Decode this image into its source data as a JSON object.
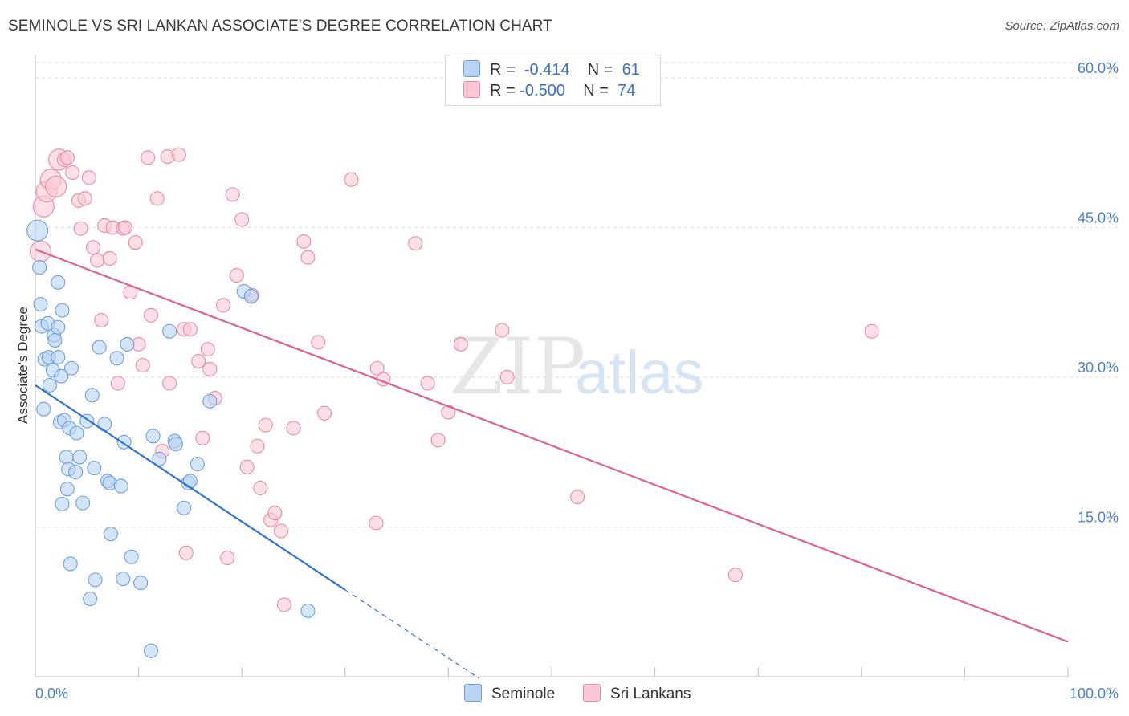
{
  "title": "SEMINOLE VS SRI LANKAN ASSOCIATE'S DEGREE CORRELATION CHART",
  "source": "Source: ZipAtlas.com",
  "watermark": {
    "zip": "ZIP",
    "atlas": "atlas"
  },
  "legend": {
    "r_label": "R =",
    "n_label": "N =",
    "series": [
      {
        "name": "Seminole",
        "r": "-0.414",
        "n": "61",
        "fill": "#b9d3f4",
        "stroke": "#6e9fe0"
      },
      {
        "name": "Sri Lankans",
        "r": "-0.500",
        "n": "74",
        "fill": "#fbc9d6",
        "stroke": "#e88aa6"
      }
    ]
  },
  "colors": {
    "blue_line": "#2f72d6",
    "pink_line": "#e0608e",
    "tick_text": "#4a7fd0",
    "grid": "#d9d9d9"
  },
  "chart_data": {
    "type": "scatter",
    "title": "SEMINOLE VS SRI LANKAN ASSOCIATE'S DEGREE CORRELATION CHART",
    "xlabel": "",
    "ylabel": "Associate's Degree",
    "xlim": [
      0,
      100
    ],
    "ylim": [
      0,
      62
    ],
    "x_tick_labels": [
      "0.0%",
      "100.0%"
    ],
    "y_ticks": [
      15,
      30,
      45,
      60
    ],
    "y_tick_labels": [
      "15.0%",
      "30.0%",
      "45.0%",
      "60.0%"
    ],
    "grid": true,
    "series": [
      {
        "name": "Seminole",
        "trend": {
          "x0": 0,
          "y0": 29.2,
          "x1": 30,
          "y1": 8.7,
          "dash_to_x": 43
        },
        "points": [
          [
            0.2,
            44.7
          ],
          [
            0.4,
            41
          ],
          [
            0.5,
            37.3
          ],
          [
            0.6,
            35.1
          ],
          [
            0.8,
            26.8
          ],
          [
            0.9,
            31.8
          ],
          [
            1.2,
            35.4
          ],
          [
            1.3,
            32
          ],
          [
            1.4,
            29.2
          ],
          [
            1.7,
            30.7
          ],
          [
            1.8,
            34.2
          ],
          [
            1.9,
            33.7
          ],
          [
            2.2,
            35
          ],
          [
            2.2,
            39.5
          ],
          [
            2.2,
            32
          ],
          [
            2.4,
            25.5
          ],
          [
            2.5,
            30.1
          ],
          [
            2.6,
            17.3
          ],
          [
            2.6,
            36.7
          ],
          [
            2.8,
            25.7
          ],
          [
            3.0,
            22
          ],
          [
            3.1,
            18.8
          ],
          [
            3.2,
            20.8
          ],
          [
            3.3,
            24.9
          ],
          [
            3.4,
            11.3
          ],
          [
            3.5,
            30.9
          ],
          [
            3.9,
            20.5
          ],
          [
            4.0,
            24.4
          ],
          [
            4.3,
            22
          ],
          [
            4.6,
            17.4
          ],
          [
            5.0,
            25.6
          ],
          [
            5.3,
            7.8
          ],
          [
            5.5,
            28.2
          ],
          [
            5.7,
            20.9
          ],
          [
            5.8,
            9.7
          ],
          [
            6.2,
            33
          ],
          [
            6.7,
            25.3
          ],
          [
            7.0,
            19.6
          ],
          [
            7.2,
            19.4
          ],
          [
            7.3,
            14.3
          ],
          [
            7.9,
            31.9
          ],
          [
            8.3,
            19.1
          ],
          [
            8.5,
            9.8
          ],
          [
            8.6,
            23.5
          ],
          [
            8.9,
            33.3
          ],
          [
            9.3,
            12
          ],
          [
            10.2,
            9.4
          ],
          [
            11.2,
            2.6
          ],
          [
            11.4,
            24.1
          ],
          [
            12.0,
            21.8
          ],
          [
            13.0,
            34.6
          ],
          [
            13.5,
            23.6
          ],
          [
            13.6,
            23.3
          ],
          [
            14.4,
            16.9
          ],
          [
            14.8,
            19.4
          ],
          [
            15.0,
            19.6
          ],
          [
            15.7,
            21.3
          ],
          [
            16.9,
            27.6
          ],
          [
            20.2,
            38.6
          ],
          [
            26.4,
            6.6
          ],
          [
            20.9,
            38.1
          ]
        ]
      },
      {
        "name": "Sri Lankans",
        "trend": {
          "x0": 0,
          "y0": 42.8,
          "x1": 100,
          "y1": 3.5
        },
        "points": [
          [
            0.5,
            42.6
          ],
          [
            0.8,
            47.1
          ],
          [
            1.1,
            48.6
          ],
          [
            1.5,
            49.8
          ],
          [
            2.0,
            49.1
          ],
          [
            2.3,
            51.8
          ],
          [
            2.8,
            51.8
          ],
          [
            3.1,
            52
          ],
          [
            3.6,
            50.5
          ],
          [
            4.2,
            47.7
          ],
          [
            4.4,
            44.9
          ],
          [
            4.8,
            47.9
          ],
          [
            5.2,
            50
          ],
          [
            5.6,
            43
          ],
          [
            6.0,
            41.7
          ],
          [
            6.4,
            35.7
          ],
          [
            6.7,
            45.2
          ],
          [
            7.2,
            41.9
          ],
          [
            7.5,
            45
          ],
          [
            8.0,
            29.4
          ],
          [
            8.5,
            44.9
          ],
          [
            8.7,
            45
          ],
          [
            9.2,
            38.5
          ],
          [
            9.7,
            43.5
          ],
          [
            10.0,
            33.3
          ],
          [
            10.4,
            31.2
          ],
          [
            10.9,
            52
          ],
          [
            11.2,
            36.2
          ],
          [
            11.8,
            47.9
          ],
          [
            12.3,
            22.6
          ],
          [
            12.8,
            52.1
          ],
          [
            13.0,
            29.4
          ],
          [
            13.9,
            52.3
          ],
          [
            14.4,
            34.8
          ],
          [
            14.6,
            12.4
          ],
          [
            15.0,
            34.8
          ],
          [
            15.8,
            31.6
          ],
          [
            16.2,
            23.9
          ],
          [
            16.7,
            32.8
          ],
          [
            16.9,
            30.8
          ],
          [
            17.4,
            27.9
          ],
          [
            18.2,
            37.2
          ],
          [
            18.6,
            11.9
          ],
          [
            19.1,
            48.3
          ],
          [
            19.5,
            40.2
          ],
          [
            20.0,
            45.8
          ],
          [
            20.5,
            21
          ],
          [
            21.0,
            38.2
          ],
          [
            21.5,
            23.1
          ],
          [
            21.8,
            18.9
          ],
          [
            22.3,
            25.2
          ],
          [
            22.8,
            15.7
          ],
          [
            23.2,
            16.4
          ],
          [
            23.8,
            14.6
          ],
          [
            24.1,
            7.2
          ],
          [
            25.0,
            24.9
          ],
          [
            26.0,
            43.6
          ],
          [
            26.4,
            42
          ],
          [
            27.4,
            33.5
          ],
          [
            28.0,
            26.4
          ],
          [
            30.6,
            49.8
          ],
          [
            33.0,
            15.4
          ],
          [
            33.1,
            30.9
          ],
          [
            33.7,
            29.8
          ],
          [
            36.8,
            43.4
          ],
          [
            38.0,
            29.4
          ],
          [
            39.0,
            23.7
          ],
          [
            40.0,
            26.5
          ],
          [
            41.2,
            33.3
          ],
          [
            45.2,
            34.7
          ],
          [
            45.7,
            30
          ],
          [
            52.5,
            18
          ],
          [
            67.8,
            10.2
          ],
          [
            81.0,
            34.6
          ]
        ]
      }
    ]
  }
}
